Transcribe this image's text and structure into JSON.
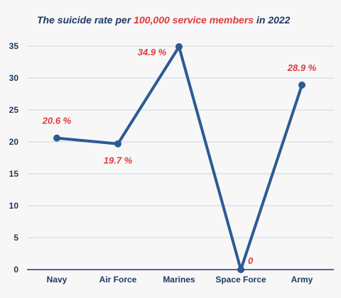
{
  "colors": {
    "background": "#f7f7f7",
    "line": "#2d5a94",
    "point": "#2d5a94",
    "grid": "#cfd6e6",
    "axis": "#1f3a63",
    "title_dark": "#1f3a63",
    "accent": "#e0393e"
  },
  "chart_data": {
    "type": "line",
    "title_parts": [
      {
        "text": "The suicide rate per ",
        "color": "#1f3a63"
      },
      {
        "text": "100,000 service members",
        "color": "#e0393e"
      },
      {
        "text": " in 2022",
        "color": "#1f3a63"
      }
    ],
    "xlabel": "",
    "ylabel": "",
    "categories": [
      "Navy",
      "Air Force",
      "Marines",
      "Space Force",
      "Army"
    ],
    "values": [
      20.6,
      19.7,
      34.9,
      0,
      28.9
    ],
    "data_labels": [
      "20.6 %",
      "19.7 %",
      "34.9 %",
      "0",
      "28.9 %"
    ],
    "data_label_positions": [
      "above",
      "below",
      "left",
      "right",
      "above"
    ],
    "y_ticks": [
      0,
      5,
      10,
      15,
      20,
      25,
      30,
      35
    ],
    "ylim": [
      0,
      35
    ],
    "grid": true
  }
}
